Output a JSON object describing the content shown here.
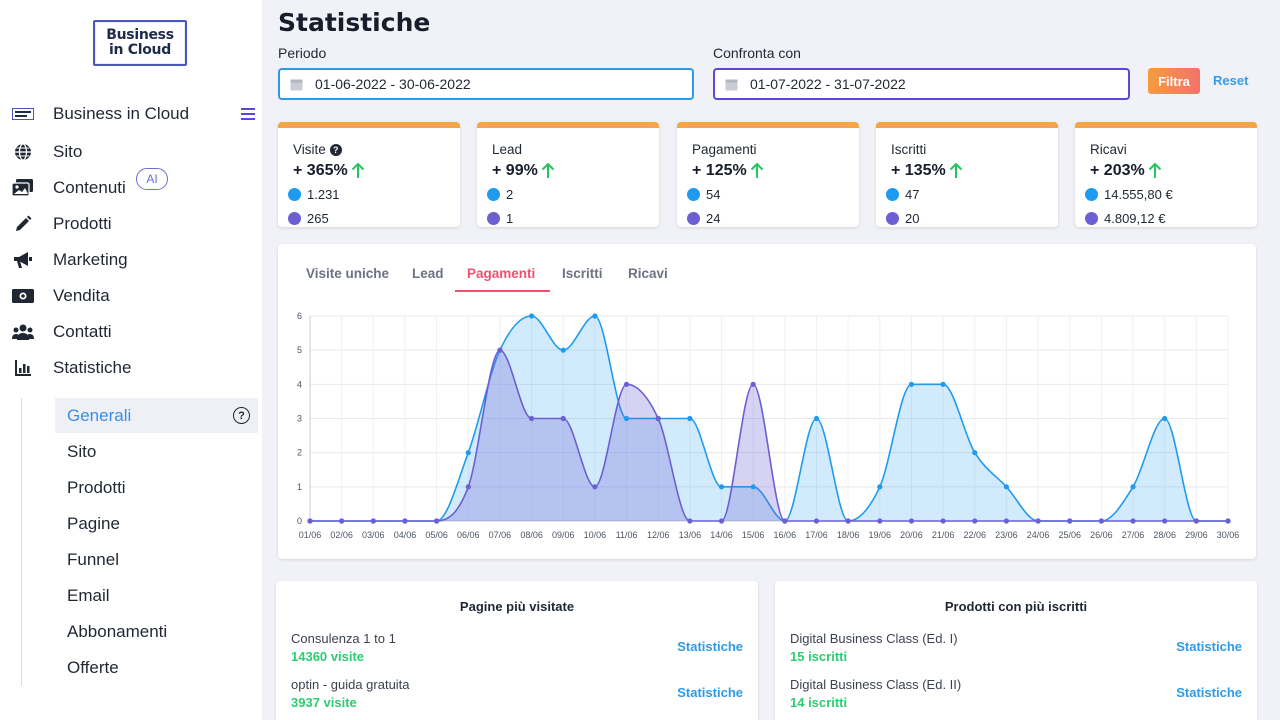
{
  "sidebar": {
    "logo_lines": [
      "Business",
      "in Cloud"
    ],
    "items": [
      {
        "label": "Business in Cloud",
        "icon": "brand-logo-icon"
      },
      {
        "label": "Sito",
        "icon": "globe-icon"
      },
      {
        "label": "Contenuti",
        "icon": "images-icon",
        "badge": "AI"
      },
      {
        "label": "Prodotti",
        "icon": "pencil-icon"
      },
      {
        "label": "Marketing",
        "icon": "megaphone-icon"
      },
      {
        "label": "Vendita",
        "icon": "money-icon"
      },
      {
        "label": "Contatti",
        "icon": "users-icon"
      },
      {
        "label": "Statistiche",
        "icon": "chart-icon"
      }
    ],
    "subitems": [
      "Generali",
      "Sito",
      "Prodotti",
      "Pagine",
      "Funnel",
      "Email",
      "Abbonamenti",
      "Offerte"
    ],
    "active_subitem": "Generali"
  },
  "header": {
    "title": "Statistiche",
    "period_label": "Periodo",
    "period_value": "01-06-2022 - 30-06-2022",
    "compare_label": "Confronta con",
    "compare_value": "01-07-2022 - 31-07-2022",
    "filter_button": "Filtra",
    "reset_button": "Reset"
  },
  "kpis": [
    {
      "title": "Visite",
      "change": "+ 365%",
      "current": "1.231",
      "previous": "265",
      "has_help": true
    },
    {
      "title": "Lead",
      "change": "+ 99%",
      "current": "2",
      "previous": "1",
      "has_help": false
    },
    {
      "title": "Pagamenti",
      "change": "+ 125%",
      "current": "54",
      "previous": "24",
      "has_help": false
    },
    {
      "title": "Iscritti",
      "change": "+ 135%",
      "current": "47",
      "previous": "20",
      "has_help": false
    },
    {
      "title": "Ricavi",
      "change": "+ 203%",
      "current": "14.555,80 €",
      "previous": "4.809,12 €",
      "has_help": false
    }
  ],
  "colors": {
    "current_series": "#1e9bf0",
    "previous_series": "#6c5fd3",
    "accent": "#f5a545",
    "active_tab": "#f0506e",
    "up_arrow": "#22c55e"
  },
  "tabs": [
    "Visite uniche",
    "Lead",
    "Pagamenti",
    "Iscritti",
    "Ricavi"
  ],
  "active_tab": "Pagamenti",
  "chart_data": {
    "type": "area",
    "x": [
      "01/06",
      "02/06",
      "03/06",
      "04/06",
      "05/06",
      "06/06",
      "07/06",
      "08/06",
      "09/06",
      "10/06",
      "11/06",
      "12/06",
      "13/06",
      "14/06",
      "15/06",
      "16/06",
      "17/06",
      "18/06",
      "19/06",
      "20/06",
      "21/06",
      "22/06",
      "23/06",
      "24/06",
      "25/06",
      "26/06",
      "27/06",
      "28/06",
      "29/06",
      "30/06"
    ],
    "ylim": [
      0,
      6
    ],
    "yticks": [
      0,
      1,
      2,
      3,
      4,
      5,
      6
    ],
    "grid": true,
    "series": [
      {
        "values": [
          0,
          0,
          0,
          0,
          0,
          2,
          5,
          6,
          5,
          6,
          3,
          3,
          3,
          1,
          1,
          0,
          3,
          0,
          1,
          4,
          4,
          2,
          1,
          0,
          0,
          0,
          1,
          3,
          0,
          0
        ]
      },
      {
        "values": [
          0,
          0,
          0,
          0,
          0,
          1,
          5,
          3,
          3,
          1,
          4,
          3,
          0,
          0,
          4,
          0,
          0,
          0,
          0,
          0,
          0,
          0,
          0,
          0,
          0,
          0,
          0,
          0,
          0,
          0
        ]
      }
    ]
  },
  "lists": [
    {
      "title": "Pagine più visitate",
      "items": [
        {
          "name": "Consulenza 1 to 1",
          "sub": "14360 visite",
          "link": "Statistiche"
        },
        {
          "name": "optin - guida gratuita",
          "sub": "3937 visite",
          "link": "Statistiche"
        }
      ]
    },
    {
      "title": "Prodotti con più iscritti",
      "items": [
        {
          "name": "Digital Business Class (Ed. I)",
          "sub": "15 iscritti",
          "link": "Statistiche"
        },
        {
          "name": "Digital Business Class (Ed. II)",
          "sub": "14 iscritti",
          "link": "Statistiche"
        }
      ]
    }
  ]
}
